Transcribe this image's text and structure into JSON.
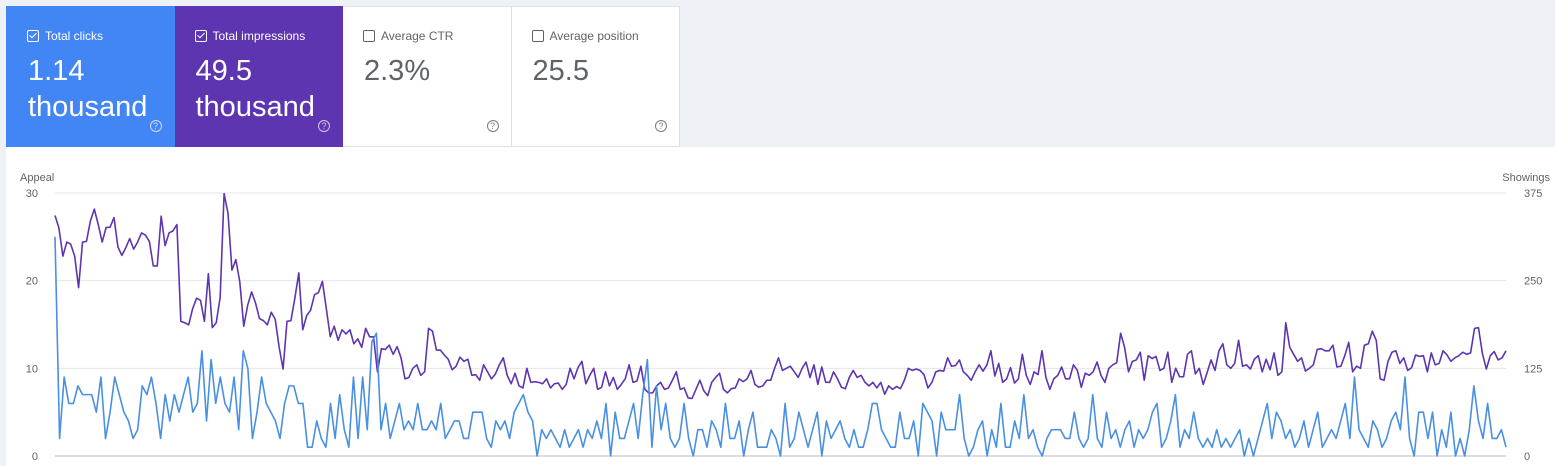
{
  "cards": [
    {
      "label": "Total clicks",
      "value": "1.14 thousand",
      "checked": true,
      "color": "#4285f4"
    },
    {
      "label": "Total impressions",
      "value": "49.5 thousand",
      "checked": true,
      "color": "#5e35b1"
    },
    {
      "label": "Average CTR",
      "value": "2.3%",
      "checked": false,
      "color": "#ffffff"
    },
    {
      "label": "Average position",
      "value": "25.5",
      "checked": false,
      "color": "#ffffff"
    }
  ],
  "help_glyph": "?",
  "chart_data": {
    "type": "line",
    "y_left_label": "Appeal",
    "y_right_label": "Showings",
    "y_left_ticks": [
      0,
      10,
      20,
      30
    ],
    "y_right_ticks": [
      0,
      125,
      250,
      375
    ],
    "ylim_left": [
      0,
      30
    ],
    "ylim_right": [
      0,
      375
    ],
    "grid": true,
    "colors": {
      "clicks": "#4a90e2",
      "impressions": "#5e35b1",
      "grid": "#e6e6e6"
    },
    "series": [
      {
        "name": "Total clicks",
        "axis": "left",
        "values": [
          25,
          2,
          9,
          6,
          6,
          8,
          7,
          7,
          7,
          5,
          9,
          2,
          5,
          9,
          7,
          5,
          4,
          2,
          3,
          8,
          7,
          9,
          6,
          2,
          7,
          4,
          7,
          5,
          7,
          9,
          5,
          6,
          12,
          4,
          11,
          6,
          9,
          6,
          5,
          9,
          3,
          12,
          10,
          2,
          5,
          9,
          6,
          5,
          4,
          2,
          6,
          8,
          8,
          6,
          6,
          1,
          1,
          4,
          2,
          1,
          6,
          2,
          7,
          3,
          1,
          9,
          2,
          9,
          3,
          13,
          14,
          3,
          6,
          2,
          4,
          6,
          3,
          4,
          3,
          6,
          3,
          3,
          4,
          3,
          6,
          2,
          3,
          4,
          4,
          2,
          2,
          5,
          5,
          5,
          2,
          1,
          4,
          3,
          4,
          2,
          5,
          6,
          7,
          5,
          4,
          0,
          3,
          2,
          3,
          2,
          1,
          3,
          1,
          2,
          3,
          1,
          3,
          2,
          4,
          2,
          6,
          0,
          5,
          2,
          2,
          4,
          6,
          2,
          7,
          11,
          1,
          8,
          3,
          6,
          2,
          1,
          2,
          6,
          2,
          0,
          3,
          3,
          1,
          4,
          3,
          1,
          6,
          2,
          2,
          4,
          0,
          3,
          5,
          1,
          1,
          1,
          3,
          2,
          0,
          6,
          1,
          2,
          5,
          3,
          1,
          3,
          5,
          0,
          4,
          2,
          3,
          4,
          2,
          1,
          3,
          1,
          1,
          3,
          6,
          6,
          3,
          2,
          1,
          1,
          5,
          2,
          2,
          4,
          0,
          6,
          5,
          4,
          0,
          5,
          3,
          3,
          3,
          7,
          2,
          0,
          1,
          3,
          4,
          0,
          3,
          1,
          6,
          1,
          1,
          4,
          2,
          7,
          2,
          3,
          1,
          0,
          2,
          3,
          3,
          3,
          2,
          2,
          5,
          2,
          1,
          2,
          7,
          2,
          1,
          5,
          2,
          3,
          1,
          3,
          4,
          1,
          3,
          2,
          3,
          5,
          6,
          1,
          2,
          4,
          7,
          1,
          3,
          2,
          5,
          2,
          1,
          2,
          1,
          3,
          1,
          2,
          1,
          2,
          3,
          0,
          2,
          0,
          2,
          4,
          6,
          2,
          5,
          4,
          2,
          3,
          1,
          2,
          4,
          1,
          3,
          5,
          1,
          2,
          3,
          2,
          4,
          6,
          2,
          9,
          3,
          2,
          1,
          4,
          3,
          1,
          2,
          4,
          5,
          3,
          9,
          2,
          0,
          5,
          5,
          2,
          5,
          0,
          3,
          1,
          5,
          0,
          2,
          0,
          3,
          8,
          4,
          2,
          6,
          2,
          2,
          3,
          1
        ]
      },
      {
        "name": "Total impressions",
        "axis": "right",
        "values": [
          343,
          325,
          285,
          305,
          302,
          285,
          240,
          305,
          306,
          335,
          352,
          330,
          305,
          326,
          326,
          340,
          298,
          286,
          297,
          310,
          295,
          305,
          318,
          315,
          306,
          271,
          271,
          342,
          300,
          318,
          321,
          330,
          192,
          190,
          187,
          210,
          225,
          222,
          192,
          260,
          183,
          190,
          226,
          374,
          346,
          265,
          280,
          248,
          185,
          215,
          234,
          218,
          196,
          193,
          187,
          205,
          195,
          155,
          124,
          192,
          193,
          225,
          261,
          180,
          200,
          208,
          230,
          233,
          249,
          210,
          170,
          185,
          165,
          180,
          174,
          180,
          160,
          167,
          155,
          182,
          170,
          170,
          120,
          153,
          152,
          158,
          145,
          156,
          140,
          110,
          112,
          125,
          130,
          115,
          120,
          182,
          178,
          151,
          151,
          144,
          138,
          123,
          128,
          141,
          135,
          138,
          115,
          116,
          108,
          130,
          120,
          110,
          117,
          130,
          140,
          115,
          103,
          118,
          100,
          97,
          125,
          105,
          106,
          105,
          103,
          110,
          97,
          103,
          104,
          95,
          102,
          125,
          110,
          126,
          135,
          103,
          115,
          125,
          95,
          98,
          120,
          100,
          112,
          95,
          102,
          110,
          130,
          105,
          107,
          128,
          95,
          90,
          90,
          100,
          105,
          95,
          97,
          108,
          120,
          95,
          97,
          83,
          82,
          95,
          108,
          93,
          86,
          105,
          112,
          118,
          95,
          90,
          96,
          97,
          110,
          106,
          110,
          122,
          102,
          98,
          100,
          108,
          108,
          125,
          140,
          122,
          125,
          128,
          120,
          112,
          125,
          134,
          112,
          130,
          102,
          127,
          105,
          105,
          120,
          110,
          98,
          96,
          112,
          122,
          112,
          115,
          105,
          100,
          105,
          97,
          105,
          88,
          100,
          95,
          99,
          96,
          108,
          125,
          122,
          124,
          122,
          116,
          97,
          105,
          120,
          122,
          121,
          140,
          128,
          129,
          137,
          120,
          115,
          108,
          120,
          130,
          121,
          130,
          150,
          114,
          132,
          105,
          110,
          126,
          104,
          110,
          145,
          115,
          102,
          120,
          116,
          150,
          112,
          95,
          110,
          115,
          127,
          110,
          110,
          130,
          122,
          98,
          118,
          115,
          120,
          134,
          115,
          105,
          125,
          130,
          133,
          175,
          155,
          120,
          135,
          137,
          148,
          108,
          143,
          139,
          142,
          122,
          125,
          148,
          105,
          125,
          113,
          113,
          145,
          150,
          117,
          125,
          102,
          119,
          137,
          122,
          150,
          160,
          130,
          125,
          132,
          165,
          128,
          130,
          124,
          138,
          143,
          120,
          138,
          123,
          147,
          115,
          120,
          190,
          155,
          145,
          135,
          140,
          121,
          125,
          130,
          152,
          153,
          150,
          150,
          158,
          127,
          128,
          143,
          162,
          120,
          128,
          125,
          158,
          160,
          178,
          165,
          110,
          108,
          135,
          148,
          150,
          132,
          140,
          122,
          126,
          144,
          142,
          143,
          120,
          147,
          130,
          132,
          150,
          144,
          135,
          140,
          143,
          148,
          145,
          147,
          182,
          183,
          146,
          124,
          143,
          149,
          137,
          140,
          150
        ]
      }
    ]
  }
}
